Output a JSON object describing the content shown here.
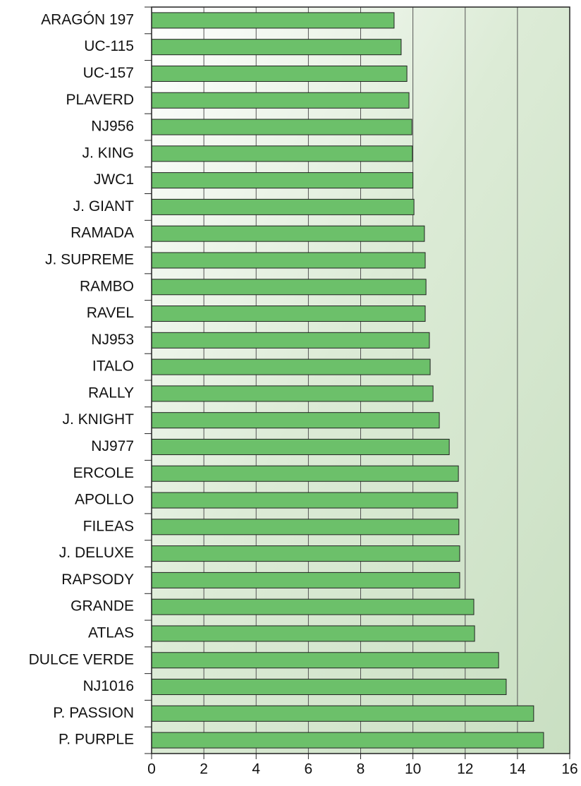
{
  "chart_data": {
    "type": "bar",
    "orientation": "horizontal",
    "categories": [
      "ARAGÓN 197",
      "UC-115",
      "UC-157",
      "PLAVERD",
      "NJ956",
      "J. KING",
      "JWC1",
      "J. GIANT",
      "RAMADA",
      "J. SUPREME",
      "RAMBO",
      "RAVEL",
      "NJ953",
      "ITALO",
      "RALLY",
      "J. KNIGHT",
      "NJ977",
      "ERCOLE",
      "APOLLO",
      "FILEAS",
      "J. DELUXE",
      "RAPSODY",
      "GRANDE",
      "ATLAS",
      "DULCE VERDE",
      "NJ1016",
      "P. PASSION",
      "P. PURPLE"
    ],
    "values": [
      9.28,
      9.55,
      9.77,
      9.85,
      9.96,
      9.98,
      10.0,
      10.04,
      10.44,
      10.47,
      10.5,
      10.47,
      10.63,
      10.66,
      10.77,
      11.01,
      11.39,
      11.74,
      11.71,
      11.76,
      11.79,
      11.79,
      12.33,
      12.36,
      13.28,
      13.57,
      14.62,
      15.0
    ],
    "color": "#6cc06a",
    "xlim": [
      0,
      16
    ],
    "xticks": [
      0,
      2,
      4,
      6,
      8,
      10,
      12,
      14,
      16
    ],
    "grid": true
  }
}
